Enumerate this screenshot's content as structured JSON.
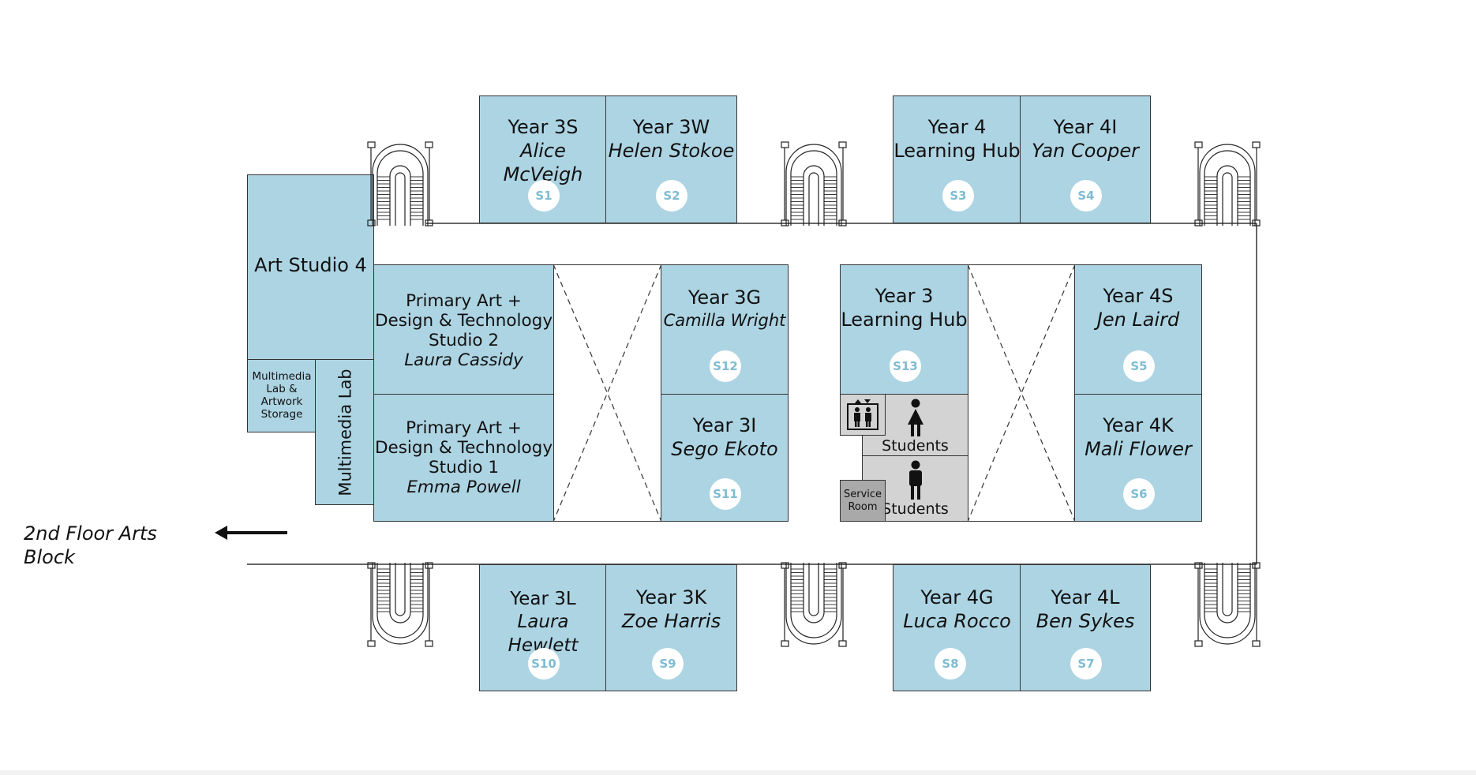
{
  "rooms_top": [
    {
      "title": "Year 3S",
      "name": "Alice McVeigh",
      "badge": "S1"
    },
    {
      "title": "Year 3W",
      "name": "Helen Stokoe",
      "badge": "S2"
    },
    {
      "title_lines": [
        "Year 4",
        "Learning Hub"
      ],
      "badge": "S3"
    },
    {
      "title": "Year 4I",
      "name": "Yan Cooper",
      "badge": "S4"
    }
  ],
  "rooms_bottom": [
    {
      "title": "Year 3L",
      "name": "Laura Hewlett",
      "badge": "S10"
    },
    {
      "title": "Year 3K",
      "name": "Zoe Harris",
      "badge": "S9"
    },
    {
      "title": "Year 4G",
      "name": "Luca Rocco",
      "badge": "S8"
    },
    {
      "title": "Year 4L",
      "name": "Ben Sykes",
      "badge": "S7"
    }
  ],
  "rooms_middle": {
    "year3g": {
      "title": "Year 3G",
      "name": "Camilla Wright",
      "badge": "S12"
    },
    "year3i": {
      "title": "Year 3I",
      "name": "Sego Ekoto",
      "badge": "S11"
    },
    "year3hub": {
      "title_lines": [
        "Year 3",
        "Learning Hub"
      ],
      "badge": "S13"
    },
    "year4s": {
      "title": "Year 4S",
      "name": "Jen Laird",
      "badge": "S5"
    },
    "year4k": {
      "title": "Year 4K",
      "name": "Mali Flower",
      "badge": "S6"
    }
  },
  "art": {
    "studio4": "Art Studio 4",
    "studio2": {
      "lines": [
        "Primary Art +",
        "Design & Technology",
        "Studio 2"
      ],
      "name": "Laura Cassidy"
    },
    "studio1": {
      "lines": [
        "Primary Art +",
        "Design & Technology",
        "Studio 1"
      ],
      "name": "Emma Powell"
    },
    "multimedia_storage": [
      "Multimedia",
      "Lab &",
      "Artwork",
      "Storage"
    ],
    "multimedia_lab": "Multimedia Lab"
  },
  "facilities": {
    "students_1": "Students",
    "students_2": "Students",
    "service_room": [
      "Service",
      "Room"
    ],
    "lift_icon": "lift-icon",
    "person_icon": "person-icon"
  },
  "direction": {
    "label": "2nd Floor Arts Block",
    "arrow_icon": "arrow-left-icon"
  },
  "colors": {
    "room": "#add4e3",
    "badge_text": "#7fbcd2",
    "toilets": "#d3d3d3",
    "service": "#a9a9a9",
    "line": "#333333"
  }
}
